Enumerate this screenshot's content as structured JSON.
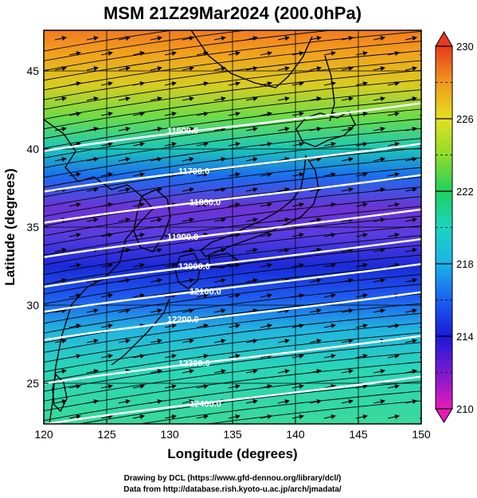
{
  "title": "MSM 21Z29Mar2024 (200.0hPa)",
  "x_axis": {
    "label": "Longitude (degrees)",
    "range": [
      120,
      150
    ],
    "ticks": [
      "120",
      "125",
      "130",
      "135",
      "140",
      "145",
      "150"
    ]
  },
  "y_axis": {
    "label": "Latitude  (degrees)",
    "range": [
      22.4,
      47.6
    ],
    "ticks": [
      "25",
      "30",
      "35",
      "40",
      "45"
    ]
  },
  "colorbar": {
    "range": [
      210,
      230
    ],
    "ticks": [
      "210",
      "214",
      "218",
      "222",
      "226",
      "230"
    ]
  },
  "contours": [
    {
      "label": "11600.0",
      "lat": 41.2
    },
    {
      "label": "11700.0",
      "lat": 38.6
    },
    {
      "label": "11800.0",
      "lat": 36.6
    },
    {
      "label": "11900.0",
      "lat": 34.4
    },
    {
      "label": "12000.0",
      "lat": 32.5
    },
    {
      "label": "12100.0",
      "lat": 30.9
    },
    {
      "label": "12200.0",
      "lat": 29.1
    },
    {
      "label": "12300.0",
      "lat": 26.3
    },
    {
      "label": "12400.0",
      "lat": 23.7
    }
  ],
  "credits": {
    "line1": "Drawing by DCL (https://www.gfd-dennou.org/library/dcl/)",
    "line2": "Data from http://database.rish.kyoto-u.ac.jp/arch/jmadata/"
  }
}
